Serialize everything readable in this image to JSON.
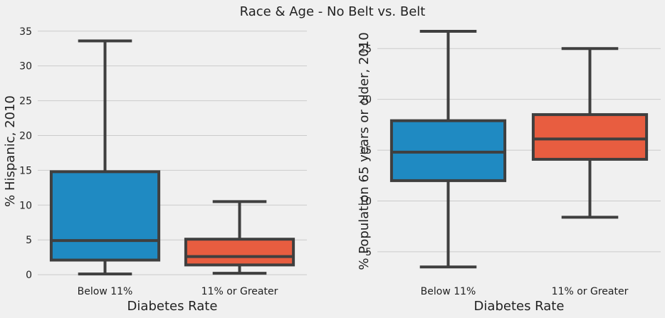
{
  "figure": {
    "title": "Race & Age - No Belt vs. Belt",
    "background": "#f0f0f0",
    "grid_color": "#cbcbcb",
    "line_color": "#3f3f3f"
  },
  "chart_data": [
    {
      "type": "box",
      "xlabel": "Diabetes Rate",
      "ylabel": "% Hispanic, 2010",
      "ylim": [
        -0.5,
        36
      ],
      "yticks": [
        0,
        5,
        10,
        15,
        20,
        25,
        30,
        35
      ],
      "grid": true,
      "categories": [
        "Below 11%",
        "11% or Greater"
      ],
      "boxes": [
        {
          "category": "Below 11%",
          "whisker_low": 0.1,
          "q1": 2.1,
          "median": 4.9,
          "q3": 14.8,
          "whisker_high": 33.6,
          "color": "#1f8ac2"
        },
        {
          "category": "11% or Greater",
          "whisker_low": 0.2,
          "q1": 1.4,
          "median": 2.6,
          "q3": 5.1,
          "whisker_high": 10.5,
          "color": "#e85d40"
        }
      ]
    },
    {
      "type": "box",
      "xlabel": "Diabetes Rate",
      "ylabel": "% Population 65 years or older, 2010",
      "ylim": [
        2.4,
        27.4
      ],
      "yticks": [
        5,
        10,
        15,
        20,
        25
      ],
      "grid": true,
      "categories": [
        "Below 11%",
        "11% or Greater"
      ],
      "boxes": [
        {
          "category": "Below 11%",
          "whisker_low": 3.5,
          "q1": 12.0,
          "median": 14.8,
          "q3": 17.9,
          "whisker_high": 26.7,
          "color": "#1f8ac2"
        },
        {
          "category": "11% or Greater",
          "whisker_low": 8.4,
          "q1": 14.1,
          "median": 16.1,
          "q3": 18.5,
          "whisker_high": 25.0,
          "color": "#e85d40"
        }
      ]
    }
  ]
}
